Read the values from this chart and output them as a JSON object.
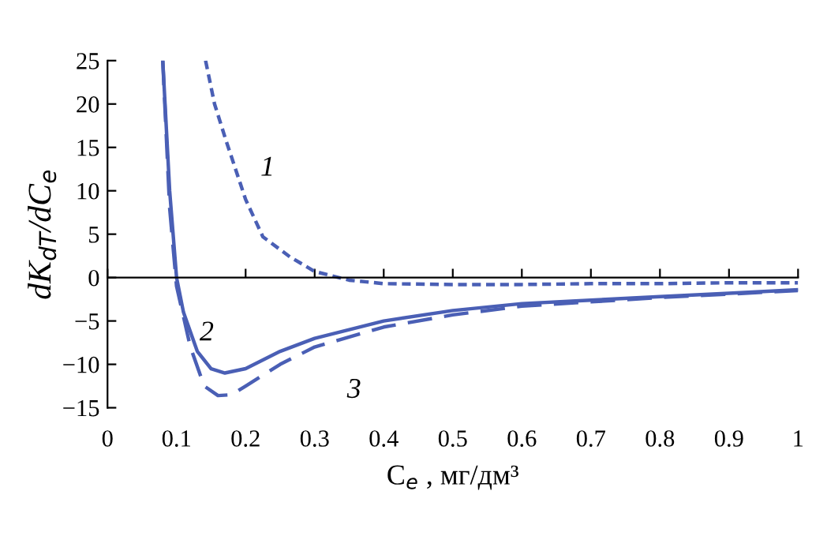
{
  "chart_data": {
    "type": "line",
    "xlabel": "C$_{e}$ , мг/дм³",
    "ylabel": "dK$_{dT}$/dC$_{e}$",
    "xlim": [
      0,
      1
    ],
    "ylim": [
      -15,
      25
    ],
    "xticks": [
      0,
      0.1,
      0.2,
      0.3,
      0.4,
      0.5,
      0.6,
      0.7,
      0.8,
      0.9,
      1
    ],
    "yticks": [
      {
        "value": -15,
        "label": "−15"
      },
      {
        "value": -10,
        "label": "−10"
      },
      {
        "value": -5,
        "label": "−5"
      },
      0,
      5,
      10,
      15,
      20,
      25
    ],
    "grid": false,
    "legend": false,
    "marker": "none",
    "series": [
      {
        "name": "1",
        "color": "#4a5fb5",
        "line_style": "dotted",
        "x": [
          0.142,
          0.155,
          0.172,
          0.2,
          0.225,
          0.264,
          0.3,
          0.35,
          0.4,
          0.5,
          0.6,
          0.7,
          0.8,
          0.9,
          1
        ],
        "values": [
          25,
          20,
          15.7,
          9,
          4.7,
          2.4,
          0.7,
          -0.3,
          -0.7,
          -0.8,
          -0.8,
          -0.7,
          -0.7,
          -0.6,
          -0.6
        ]
      },
      {
        "name": "2",
        "color": "#4a5fb5",
        "line_style": "solid",
        "x": [
          0.08,
          0.09,
          0.1,
          0.11,
          0.13,
          0.15,
          0.17,
          0.2,
          0.25,
          0.3,
          0.4,
          0.5,
          0.6,
          0.7,
          0.8,
          0.9,
          1
        ],
        "values": [
          25,
          10,
          0,
          -4,
          -8.5,
          -10.5,
          -11,
          -10.5,
          -8.5,
          -7,
          -5,
          -3.8,
          -3,
          -2.6,
          -2.2,
          -1.8,
          -1.4
        ]
      },
      {
        "name": "3",
        "color": "#4a5fb5",
        "line_style": "dashed",
        "x": [
          0.08,
          0.09,
          0.1,
          0.12,
          0.14,
          0.16,
          0.18,
          0.2,
          0.25,
          0.3,
          0.4,
          0.5,
          0.6,
          0.7,
          0.8,
          0.9,
          1
        ],
        "values": [
          25,
          8,
          -1,
          -8,
          -12.5,
          -13.6,
          -13.5,
          -12.5,
          -10,
          -8,
          -5.7,
          -4.3,
          -3.3,
          -2.8,
          -2.3,
          -1.9,
          -1.5
        ]
      }
    ],
    "ref_lines": [
      {
        "axis": "y",
        "value": 0,
        "color": "#000000"
      }
    ]
  }
}
